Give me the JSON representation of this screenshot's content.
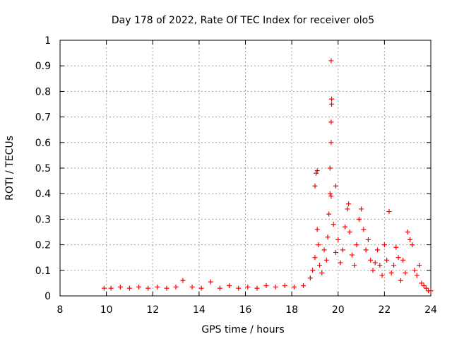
{
  "chart_data": {
    "type": "scatter",
    "title": "Day 178 of 2022, Rate Of TEC Index for receiver olo5",
    "xlabel": "GPS time / hours",
    "ylabel": "ROTI / TECUs",
    "xlim": [
      8,
      24
    ],
    "ylim": [
      0,
      1
    ],
    "xticks": [
      "8",
      "10",
      "12",
      "14",
      "16",
      "18",
      "20",
      "22",
      "24"
    ],
    "yticks": [
      "0",
      "0.1",
      "0.2",
      "0.3",
      "0.4",
      "0.5",
      "0.6",
      "0.7",
      "0.8",
      "0.9",
      "1"
    ],
    "grid": true,
    "marker": "+",
    "series": [
      {
        "color": "#ff0000",
        "points": [
          [
            9.9,
            0.03
          ],
          [
            10.2,
            0.03
          ],
          [
            10.6,
            0.035
          ],
          [
            11.0,
            0.03
          ],
          [
            11.4,
            0.035
          ],
          [
            11.8,
            0.03
          ],
          [
            12.2,
            0.035
          ],
          [
            12.6,
            0.03
          ],
          [
            13.0,
            0.035
          ],
          [
            13.3,
            0.06
          ],
          [
            13.7,
            0.035
          ],
          [
            14.1,
            0.03
          ],
          [
            14.5,
            0.055
          ],
          [
            14.9,
            0.03
          ],
          [
            15.3,
            0.04
          ],
          [
            15.7,
            0.03
          ],
          [
            16.1,
            0.035
          ],
          [
            16.5,
            0.03
          ],
          [
            16.9,
            0.04
          ],
          [
            17.3,
            0.035
          ],
          [
            17.7,
            0.04
          ],
          [
            18.1,
            0.035
          ],
          [
            18.5,
            0.04
          ],
          [
            18.8,
            0.07
          ],
          [
            18.9,
            0.1
          ],
          [
            19.0,
            0.15
          ],
          [
            19.0,
            0.43
          ],
          [
            19.05,
            0.48
          ],
          [
            19.1,
            0.49
          ],
          [
            19.1,
            0.26
          ],
          [
            19.15,
            0.2
          ],
          [
            19.2,
            0.12
          ],
          [
            19.3,
            0.09
          ],
          [
            19.4,
            0.18
          ],
          [
            19.5,
            0.14
          ],
          [
            19.55,
            0.23
          ],
          [
            19.6,
            0.32
          ],
          [
            19.65,
            0.4
          ],
          [
            19.7,
            0.39
          ],
          [
            19.65,
            0.5
          ],
          [
            19.7,
            0.6
          ],
          [
            19.7,
            0.68
          ],
          [
            19.72,
            0.75
          ],
          [
            19.72,
            0.77
          ],
          [
            19.7,
            0.92
          ],
          [
            19.8,
            0.28
          ],
          [
            19.9,
            0.17
          ],
          [
            19.9,
            0.43
          ],
          [
            20.0,
            0.22
          ],
          [
            20.1,
            0.13
          ],
          [
            20.2,
            0.18
          ],
          [
            20.3,
            0.27
          ],
          [
            20.4,
            0.34
          ],
          [
            20.45,
            0.36
          ],
          [
            20.5,
            0.25
          ],
          [
            20.6,
            0.16
          ],
          [
            20.7,
            0.12
          ],
          [
            20.8,
            0.2
          ],
          [
            20.9,
            0.3
          ],
          [
            21.0,
            0.34
          ],
          [
            21.1,
            0.26
          ],
          [
            21.2,
            0.18
          ],
          [
            21.3,
            0.22
          ],
          [
            21.4,
            0.14
          ],
          [
            21.5,
            0.1
          ],
          [
            21.6,
            0.13
          ],
          [
            21.7,
            0.18
          ],
          [
            21.8,
            0.12
          ],
          [
            21.9,
            0.08
          ],
          [
            22.0,
            0.2
          ],
          [
            22.1,
            0.14
          ],
          [
            22.2,
            0.33
          ],
          [
            22.3,
            0.09
          ],
          [
            22.4,
            0.12
          ],
          [
            22.5,
            0.19
          ],
          [
            22.6,
            0.15
          ],
          [
            22.7,
            0.06
          ],
          [
            22.8,
            0.14
          ],
          [
            22.9,
            0.09
          ],
          [
            23.0,
            0.25
          ],
          [
            23.1,
            0.22
          ],
          [
            23.2,
            0.2
          ],
          [
            23.3,
            0.1
          ],
          [
            23.4,
            0.08
          ],
          [
            23.5,
            0.12
          ],
          [
            23.6,
            0.05
          ],
          [
            23.7,
            0.04
          ],
          [
            23.8,
            0.03
          ],
          [
            23.9,
            0.02
          ],
          [
            24.0,
            0.02
          ]
        ]
      }
    ]
  }
}
